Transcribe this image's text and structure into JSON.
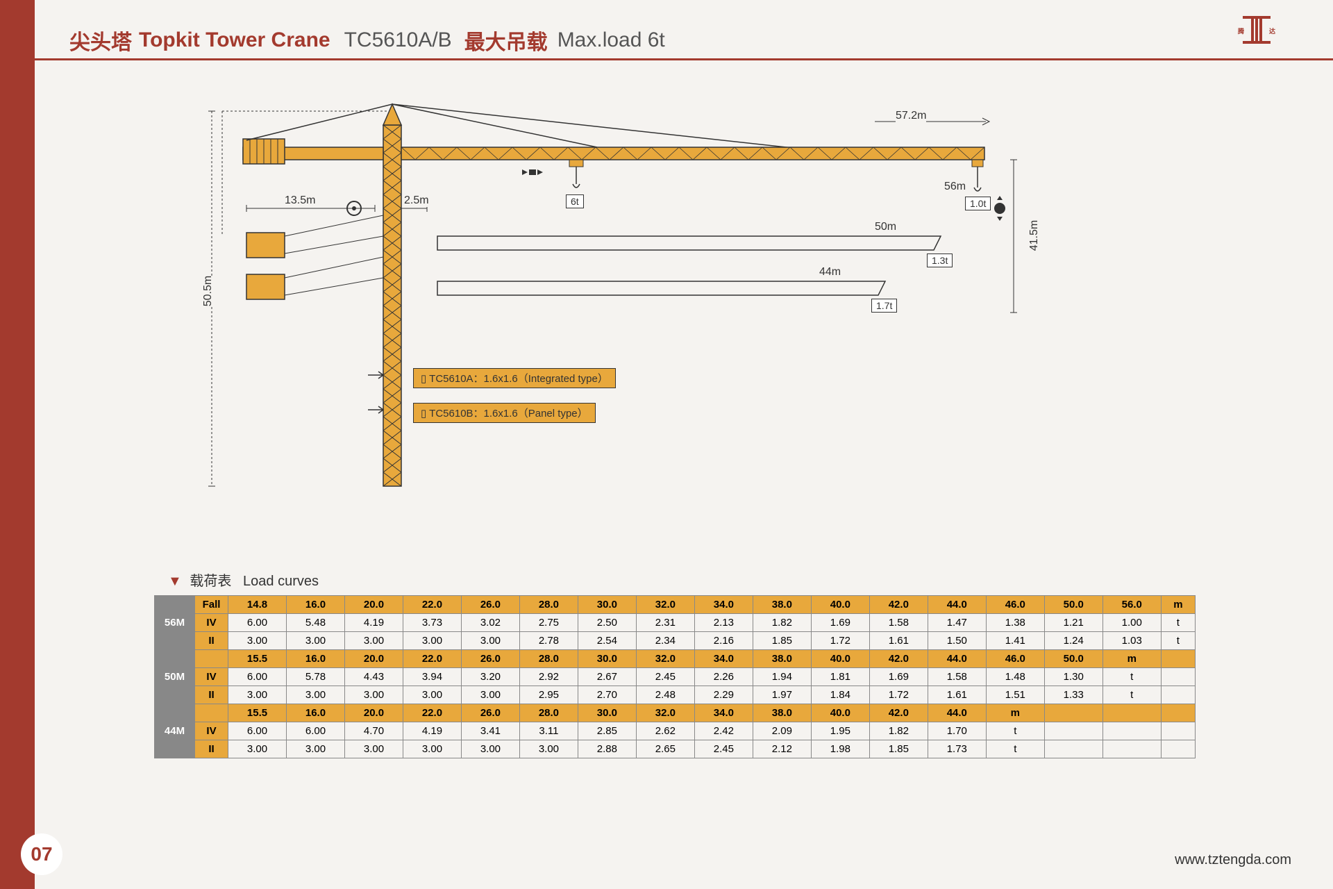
{
  "header": {
    "title_cn": "尖头塔",
    "title_en": "Topkit Tower Crane",
    "model": "TC5610A/B",
    "maxload_cn": "最大吊载",
    "maxload_en": "Max.load 6t"
  },
  "logo_text": "腾达",
  "page_number": "07",
  "website": "www.tztengda.com",
  "diagram": {
    "colors": {
      "crane_yellow": "#e8a83c",
      "outline": "#333333",
      "bg": "#f5f3f0"
    },
    "dimensions": {
      "height_total": "50.5m",
      "counter_jib": "13.5m",
      "jib_offset": "2.5m",
      "jib_total": "57.2m",
      "tip_radius": "56m",
      "free_height": "41.5m",
      "jib50": "50m",
      "jib44": "44m"
    },
    "loads": {
      "at_trolley": "6t",
      "at_tip": "1.0t",
      "at_50m": "1.3t",
      "at_44m": "1.7t"
    },
    "specs": {
      "a": "TC5610A：1.6x1.6（Integrated type）",
      "b": "TC5610B：1.6x1.6（Panel type）"
    }
  },
  "load_curves": {
    "title_cn": "载荷表",
    "title_en": "Load curves",
    "groups": [
      {
        "label": "56M",
        "header": [
          "Fall",
          "14.8",
          "16.0",
          "20.0",
          "22.0",
          "26.0",
          "28.0",
          "30.0",
          "32.0",
          "34.0",
          "38.0",
          "40.0",
          "42.0",
          "44.0",
          "46.0",
          "50.0",
          "56.0",
          "m"
        ],
        "rows": [
          [
            "IV",
            "6.00",
            "5.48",
            "4.19",
            "3.73",
            "3.02",
            "2.75",
            "2.50",
            "2.31",
            "2.13",
            "1.82",
            "1.69",
            "1.58",
            "1.47",
            "1.38",
            "1.21",
            "1.00",
            "t"
          ],
          [
            "II",
            "3.00",
            "3.00",
            "3.00",
            "3.00",
            "3.00",
            "2.78",
            "2.54",
            "2.34",
            "2.16",
            "1.85",
            "1.72",
            "1.61",
            "1.50",
            "1.41",
            "1.24",
            "1.03",
            "t"
          ]
        ]
      },
      {
        "label": "50M",
        "header": [
          "",
          "15.5",
          "16.0",
          "20.0",
          "22.0",
          "26.0",
          "28.0",
          "30.0",
          "32.0",
          "34.0",
          "38.0",
          "40.0",
          "42.0",
          "44.0",
          "46.0",
          "50.0",
          "m",
          ""
        ],
        "rows": [
          [
            "IV",
            "6.00",
            "5.78",
            "4.43",
            "3.94",
            "3.20",
            "2.92",
            "2.67",
            "2.45",
            "2.26",
            "1.94",
            "1.81",
            "1.69",
            "1.58",
            "1.48",
            "1.30",
            "t",
            ""
          ],
          [
            "II",
            "3.00",
            "3.00",
            "3.00",
            "3.00",
            "3.00",
            "2.95",
            "2.70",
            "2.48",
            "2.29",
            "1.97",
            "1.84",
            "1.72",
            "1.61",
            "1.51",
            "1.33",
            "t",
            ""
          ]
        ]
      },
      {
        "label": "44M",
        "header": [
          "",
          "15.5",
          "16.0",
          "20.0",
          "22.0",
          "26.0",
          "28.0",
          "30.0",
          "32.0",
          "34.0",
          "38.0",
          "40.0",
          "42.0",
          "44.0",
          "m",
          "",
          "",
          ""
        ],
        "rows": [
          [
            "IV",
            "6.00",
            "6.00",
            "4.70",
            "4.19",
            "3.41",
            "3.11",
            "2.85",
            "2.62",
            "2.42",
            "2.09",
            "1.95",
            "1.82",
            "1.70",
            "t",
            "",
            "",
            ""
          ],
          [
            "II",
            "3.00",
            "3.00",
            "3.00",
            "3.00",
            "3.00",
            "3.00",
            "2.88",
            "2.65",
            "2.45",
            "2.12",
            "1.98",
            "1.85",
            "1.73",
            "t",
            "",
            "",
            ""
          ]
        ]
      }
    ]
  }
}
